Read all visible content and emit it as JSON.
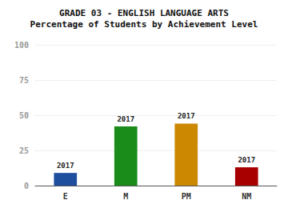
{
  "chart_data": {
    "type": "bar",
    "title": "GRADE 03 - ENGLISH LANGUAGE ARTS",
    "subtitle": "Percentage of Students by Achievement Level",
    "categories": [
      "E",
      "M",
      "PM",
      "NM"
    ],
    "values": [
      9,
      42,
      44,
      13
    ],
    "colors": [
      "#1f4e9e",
      "#1a8c1a",
      "#cc8800",
      "#a80000"
    ],
    "annotations": [
      "2017",
      "2017",
      "2017",
      "2017"
    ],
    "ylim": [
      0,
      100
    ],
    "yticks": [
      0,
      25,
      50,
      75,
      100
    ],
    "grid": true
  }
}
